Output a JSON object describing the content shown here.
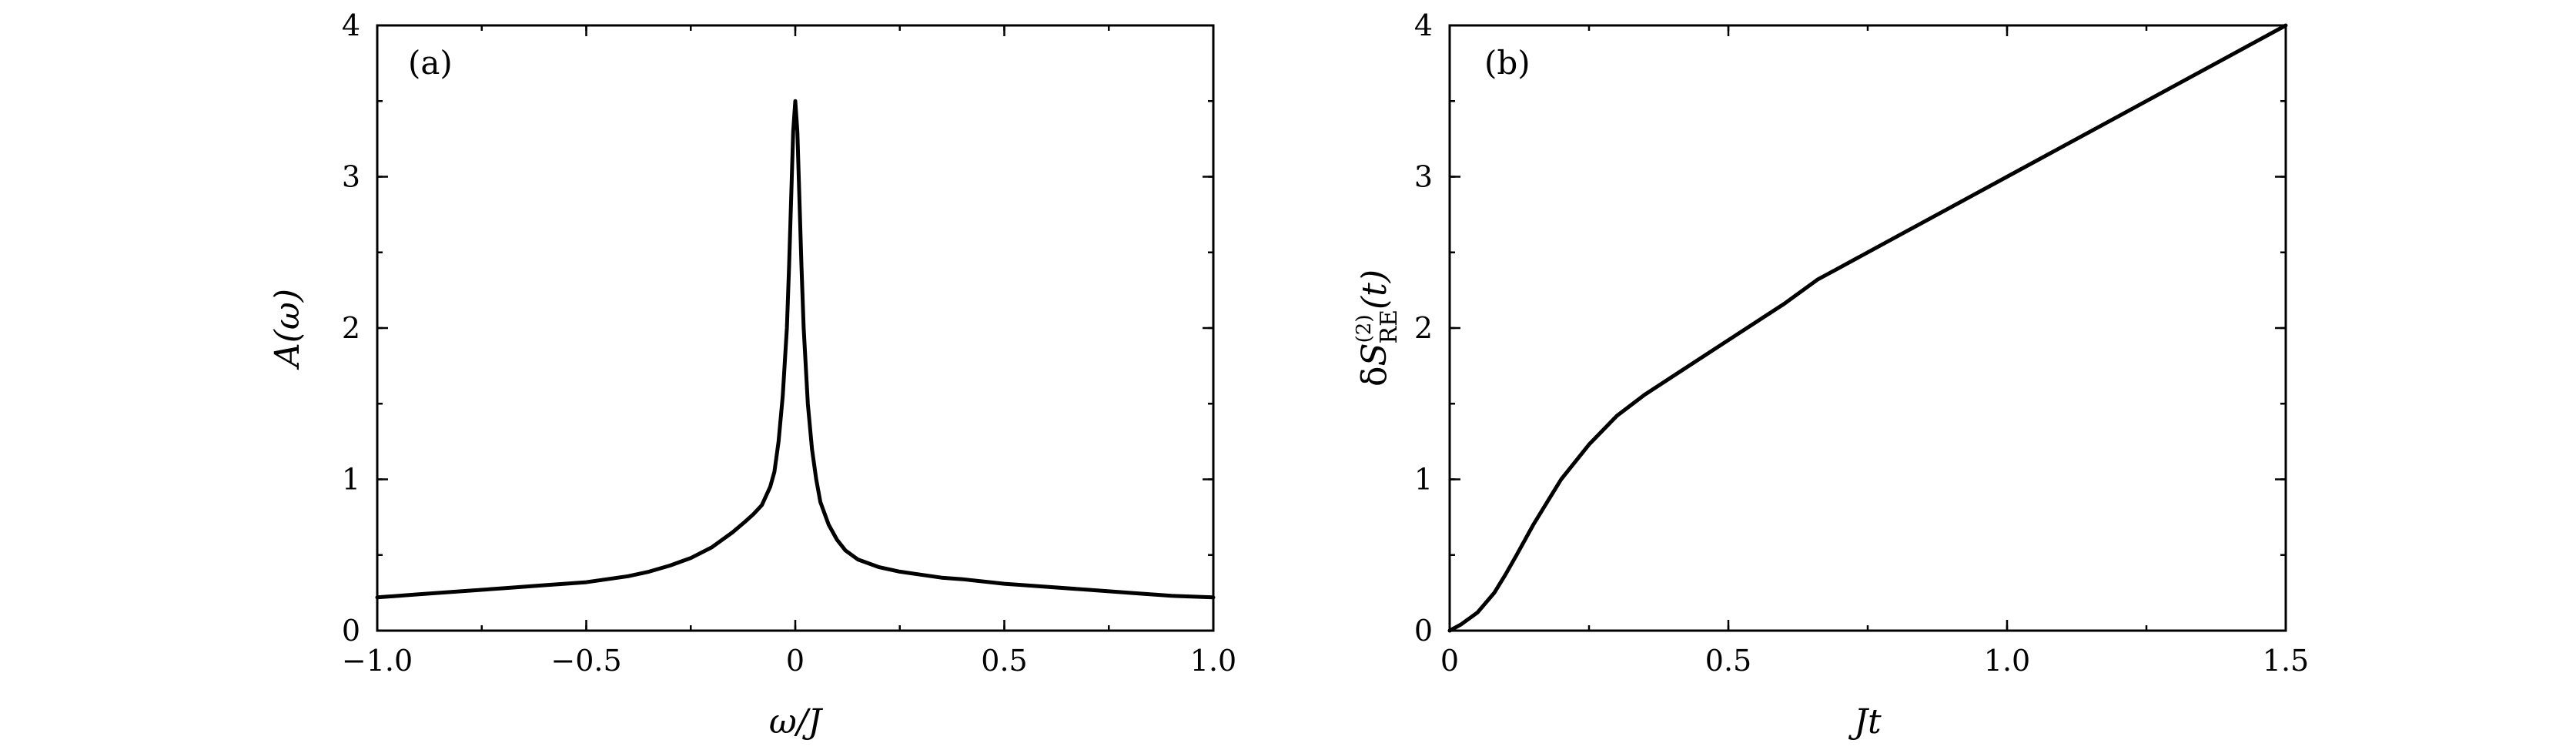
{
  "chart_data": [
    {
      "type": "line",
      "panel_label": "(a)",
      "xlabel": "ω/J",
      "ylabel": "A(ω)",
      "xlim": [
        -1.0,
        1.0
      ],
      "ylim": [
        0,
        4
      ],
      "x_ticks": [
        -1.0,
        -0.5,
        0,
        0.5,
        1.0
      ],
      "x_tick_labels": [
        "−1.0",
        "−0.5",
        "0",
        "0.5",
        "1.0"
      ],
      "y_ticks": [
        0,
        1,
        2,
        3,
        4
      ],
      "y_tick_labels": [
        "0",
        "1",
        "2",
        "3",
        "4"
      ],
      "grid": false,
      "series": [
        {
          "x": [
            -1.0,
            -0.9,
            -0.8,
            -0.7,
            -0.6,
            -0.5,
            -0.4,
            -0.35,
            -0.3,
            -0.25,
            -0.2,
            -0.15,
            -0.12,
            -0.1,
            -0.08,
            -0.06,
            -0.05,
            -0.04,
            -0.03,
            -0.02,
            -0.015,
            -0.01,
            -0.005,
            0.0,
            0.005,
            0.01,
            0.015,
            0.02,
            0.03,
            0.04,
            0.05,
            0.06,
            0.08,
            0.1,
            0.12,
            0.15,
            0.2,
            0.25,
            0.3,
            0.35,
            0.4,
            0.5,
            0.6,
            0.7,
            0.8,
            0.9,
            1.0
          ],
          "y": [
            0.22,
            0.24,
            0.26,
            0.28,
            0.3,
            0.32,
            0.36,
            0.39,
            0.43,
            0.48,
            0.55,
            0.65,
            0.72,
            0.77,
            0.83,
            0.95,
            1.05,
            1.25,
            1.55,
            2.0,
            2.4,
            2.85,
            3.3,
            3.5,
            3.3,
            2.85,
            2.4,
            2.0,
            1.5,
            1.2,
            1.0,
            0.85,
            0.7,
            0.6,
            0.53,
            0.47,
            0.42,
            0.39,
            0.37,
            0.35,
            0.34,
            0.31,
            0.29,
            0.27,
            0.25,
            0.23,
            0.22
          ]
        }
      ]
    },
    {
      "type": "line",
      "panel_label": "(b)",
      "xlabel": "Jt",
      "ylabel": "δS(2)RE(t)",
      "xlim": [
        0,
        1.5
      ],
      "ylim": [
        0,
        4
      ],
      "x_ticks": [
        0,
        0.5,
        1.0,
        1.5
      ],
      "x_tick_labels": [
        "0",
        "0.5",
        "1.0",
        "1.5"
      ],
      "y_ticks": [
        0,
        1,
        2,
        3,
        4
      ],
      "y_tick_labels": [
        "0",
        "1",
        "2",
        "3",
        "4"
      ],
      "grid": false,
      "series": [
        {
          "x": [
            0.0,
            0.02,
            0.05,
            0.08,
            0.1,
            0.12,
            0.15,
            0.18,
            0.2,
            0.25,
            0.3,
            0.35,
            0.4,
            0.5,
            0.6,
            0.66,
            0.7,
            0.8,
            0.9,
            1.0,
            1.1,
            1.2,
            1.3,
            1.4,
            1.5
          ],
          "y": [
            0.0,
            0.04,
            0.12,
            0.25,
            0.37,
            0.5,
            0.7,
            0.88,
            1.0,
            1.23,
            1.42,
            1.56,
            1.68,
            1.92,
            2.16,
            2.32,
            2.4,
            2.6,
            2.8,
            3.0,
            3.2,
            3.4,
            3.6,
            3.8,
            4.0
          ]
        }
      ]
    }
  ]
}
